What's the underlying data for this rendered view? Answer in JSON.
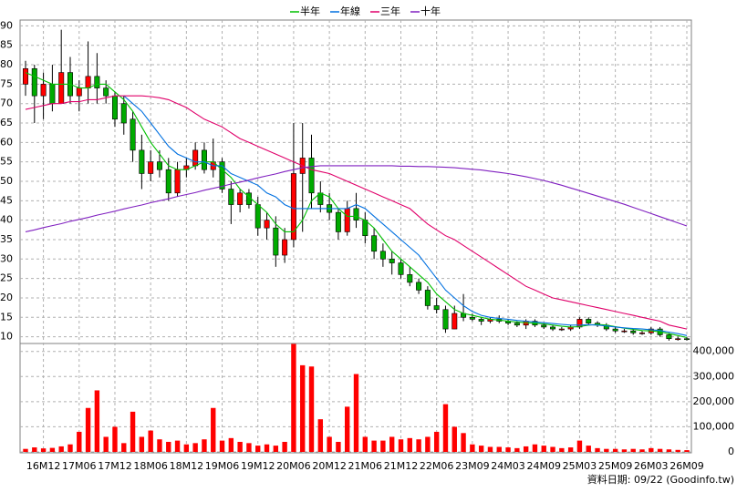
{
  "chart_data": {
    "type": "candlestick",
    "categories": [
      null,
      null,
      "16M12",
      null,
      null,
      null,
      "17M06",
      null,
      null,
      null,
      "17M12",
      null,
      null,
      null,
      "18M06",
      null,
      null,
      null,
      "18M12",
      null,
      null,
      null,
      "19M06",
      null,
      null,
      null,
      "19M12",
      null,
      null,
      null,
      "20M06",
      null,
      null,
      null,
      "20M12",
      null,
      null,
      null,
      "21M06",
      null,
      null,
      null,
      "21M12",
      null,
      null,
      null,
      "22M06",
      null,
      null,
      null,
      "23M09",
      null,
      null,
      null,
      "24M03",
      null,
      null,
      null,
      "24M09",
      null,
      null,
      null,
      "25M03",
      null,
      null,
      null,
      "25M09",
      null,
      null,
      null,
      "26M03",
      null,
      null,
      null,
      "26M09"
    ],
    "ohlc": {
      "up_color": "#ff0000",
      "down_color": "#00aa00",
      "open": [
        75,
        79,
        72,
        75,
        70,
        78,
        72,
        74,
        77,
        74,
        72,
        70,
        66,
        58,
        52,
        55,
        53,
        47,
        53,
        54,
        58,
        53,
        55,
        48,
        44,
        47,
        44,
        38,
        38,
        31,
        35,
        52,
        56,
        47,
        44,
        42,
        37,
        43,
        40,
        36,
        32,
        30,
        29,
        26,
        24,
        22,
        18,
        17,
        12,
        16,
        15,
        14.5,
        14,
        14.5,
        14,
        13.5,
        13,
        14,
        13,
        12.5,
        12,
        12,
        12.5,
        14.5,
        13.5,
        13,
        12,
        11.5,
        11.5,
        11,
        11,
        12,
        10.5,
        9.5,
        9.5
      ],
      "high": [
        81,
        80,
        78,
        80,
        89,
        82,
        76,
        86,
        83,
        76,
        73,
        72,
        68,
        62,
        58,
        58,
        56,
        55,
        56,
        60,
        60,
        61,
        56,
        50,
        48,
        48,
        46,
        42,
        41,
        38,
        65,
        65,
        62,
        50,
        47,
        43,
        45,
        47,
        42,
        38,
        34,
        32,
        30,
        28,
        25,
        23,
        20,
        18,
        18,
        21,
        16,
        15,
        15,
        15.5,
        14.5,
        14,
        14.5,
        14.5,
        13.5,
        13,
        12.5,
        13,
        15,
        15,
        14,
        13.5,
        12.5,
        12,
        12,
        11.5,
        12.5,
        12.5,
        11,
        10,
        10
      ],
      "low": [
        72,
        65,
        66,
        68,
        70,
        70,
        68,
        70,
        70,
        70,
        64,
        62,
        55,
        48,
        50,
        51,
        45,
        46,
        51,
        53,
        52,
        51,
        47,
        39,
        42,
        43,
        36,
        35,
        28,
        29,
        33,
        37,
        43,
        42,
        40,
        35,
        36,
        38,
        34,
        30,
        28,
        26,
        25,
        23,
        21,
        17,
        16,
        11,
        12,
        14,
        14,
        13,
        13.5,
        13.5,
        13,
        12.5,
        12,
        12.5,
        12,
        11.5,
        11.5,
        11.5,
        12,
        13,
        12.5,
        11.5,
        11,
        11,
        10.5,
        10.5,
        10.5,
        10,
        9,
        9,
        9
      ],
      "close": [
        79,
        72,
        75,
        70,
        78,
        72,
        74,
        77,
        74,
        72,
        66,
        65,
        58,
        52,
        55,
        53,
        47,
        53,
        54,
        58,
        53,
        55,
        48,
        44,
        47,
        44,
        38,
        40,
        31,
        35,
        52,
        56,
        47,
        44,
        42,
        37,
        43,
        40,
        36,
        32,
        30,
        29,
        26,
        24,
        22,
        18,
        17,
        12,
        16,
        15,
        14.5,
        14,
        14.5,
        14,
        13.5,
        13,
        14,
        13,
        12.5,
        12,
        12,
        12.5,
        14.5,
        13.5,
        13,
        12,
        11.5,
        11.5,
        11,
        11,
        12,
        10.5,
        9.5,
        9.5,
        9.3
      ]
    },
    "volume": {
      "color": "#ff0000",
      "values": [
        12000,
        18000,
        14000,
        16000,
        22000,
        30000,
        80000,
        175000,
        245000,
        60000,
        100000,
        35000,
        160000,
        60000,
        85000,
        50000,
        40000,
        45000,
        30000,
        35000,
        50000,
        175000,
        45000,
        55000,
        40000,
        35000,
        25000,
        30000,
        25000,
        40000,
        430000,
        345000,
        340000,
        130000,
        60000,
        40000,
        180000,
        310000,
        60000,
        45000,
        45000,
        60000,
        50000,
        55000,
        50000,
        60000,
        80000,
        190000,
        100000,
        75000,
        30000,
        25000,
        20000,
        20000,
        18000,
        15000,
        22000,
        30000,
        25000,
        20000,
        15000,
        18000,
        45000,
        25000,
        15000,
        12000,
        12000,
        10000,
        12000,
        10000,
        15000,
        12000,
        10000,
        8000,
        7000
      ]
    },
    "series": [
      {
        "name": "半年",
        "color": "#00c000",
        "values": [
          78,
          77,
          76,
          75,
          75,
          75,
          74,
          74,
          75,
          75,
          73,
          71,
          68,
          64,
          60,
          57,
          54,
          53,
          53,
          54,
          55,
          55,
          53,
          51,
          48,
          46,
          44,
          42,
          39,
          37,
          37,
          40,
          45,
          47,
          46,
          43,
          41,
          41,
          40,
          38,
          35,
          32,
          30,
          28,
          26,
          24,
          21,
          19,
          17,
          16,
          15.5,
          15,
          14.5,
          14.3,
          14,
          13.8,
          13.6,
          13.5,
          13.3,
          13,
          12.7,
          12.5,
          12.6,
          13,
          13.2,
          13,
          12.6,
          12.2,
          11.9,
          11.6,
          11.5,
          11.3,
          10.8,
          10.3,
          9.8
        ]
      },
      {
        "name": "年線",
        "color": "#0070e0",
        "values": [
          null,
          null,
          null,
          null,
          null,
          null,
          null,
          null,
          null,
          null,
          null,
          72,
          70,
          68,
          65,
          62,
          59,
          57,
          56,
          55,
          55,
          54,
          54,
          52,
          51,
          50,
          49,
          47,
          46,
          44,
          43,
          43,
          43,
          43,
          43,
          43,
          43,
          44,
          43,
          41,
          39,
          37,
          35,
          33,
          31,
          28,
          25,
          22,
          20,
          18,
          16.5,
          15.5,
          15,
          14.7,
          14.5,
          14.2,
          14,
          13.8,
          13.6,
          13.4,
          13.2,
          13,
          13,
          13.1,
          13,
          12.8,
          12.5,
          12.3,
          12.1,
          12,
          11.8,
          11.6,
          11.2,
          10.8,
          10.3
        ]
      },
      {
        "name": "三年",
        "color": "#e0006a",
        "values": [
          68.5,
          69,
          69.5,
          70,
          70,
          70.5,
          70.5,
          71,
          71,
          71.5,
          72,
          72,
          72,
          72,
          71.8,
          71.5,
          71,
          70,
          69,
          67.5,
          66,
          65,
          64,
          62.5,
          61,
          60,
          59,
          58,
          57,
          56,
          55,
          54,
          53,
          52.5,
          52,
          51,
          50,
          49,
          48,
          47,
          46,
          45,
          44,
          43,
          41,
          39,
          37.5,
          36,
          35,
          33.5,
          32,
          30.5,
          29,
          27.5,
          26,
          24.5,
          23,
          22,
          21,
          20,
          19.5,
          19,
          18.5,
          18,
          17.5,
          17,
          16.5,
          16,
          15.5,
          15,
          14.5,
          14,
          13,
          12.5,
          12
        ]
      },
      {
        "name": "十年",
        "color": "#8020c0",
        "values": [
          37,
          37.5,
          38.1,
          38.6,
          39.1,
          39.7,
          40.2,
          40.7,
          41.3,
          41.8,
          42.3,
          42.9,
          43.4,
          43.9,
          44.5,
          45,
          45.5,
          46.1,
          46.6,
          47.1,
          47.7,
          48.2,
          48.7,
          49.3,
          49.8,
          50.3,
          50.9,
          51.4,
          51.9,
          52.5,
          53,
          53.5,
          53.8,
          54,
          54,
          54,
          54,
          54,
          54,
          54,
          54,
          54,
          53.9,
          53.9,
          53.8,
          53.8,
          53.7,
          53.6,
          53.5,
          53.3,
          53.1,
          52.9,
          52.6,
          52.3,
          52,
          51.6,
          51.2,
          50.7,
          50.2,
          49.6,
          49,
          48.3,
          47.6,
          46.9,
          46.2,
          45.5,
          44.8,
          44.1,
          43.3,
          42.5,
          41.7,
          40.9,
          40.1,
          39.3,
          38.5
        ]
      }
    ],
    "ylim": [
      8.5,
      91.5
    ],
    "yticks": [
      10,
      15,
      20,
      25,
      30,
      35,
      40,
      45,
      50,
      55,
      60,
      65,
      70,
      75,
      80,
      85,
      90
    ],
    "y2lim": [
      0,
      428000
    ],
    "y2ticks": [
      0,
      {
        "value": 100000,
        "label": "100,000"
      },
      {
        "value": 200000,
        "label": "200,000"
      },
      {
        "value": 300000,
        "label": "300,000"
      },
      {
        "value": 400000,
        "label": "400,000"
      }
    ],
    "grid": true,
    "legend": "top",
    "date_note": "資料日期: 09/22 (Goodinfo.tw)"
  }
}
